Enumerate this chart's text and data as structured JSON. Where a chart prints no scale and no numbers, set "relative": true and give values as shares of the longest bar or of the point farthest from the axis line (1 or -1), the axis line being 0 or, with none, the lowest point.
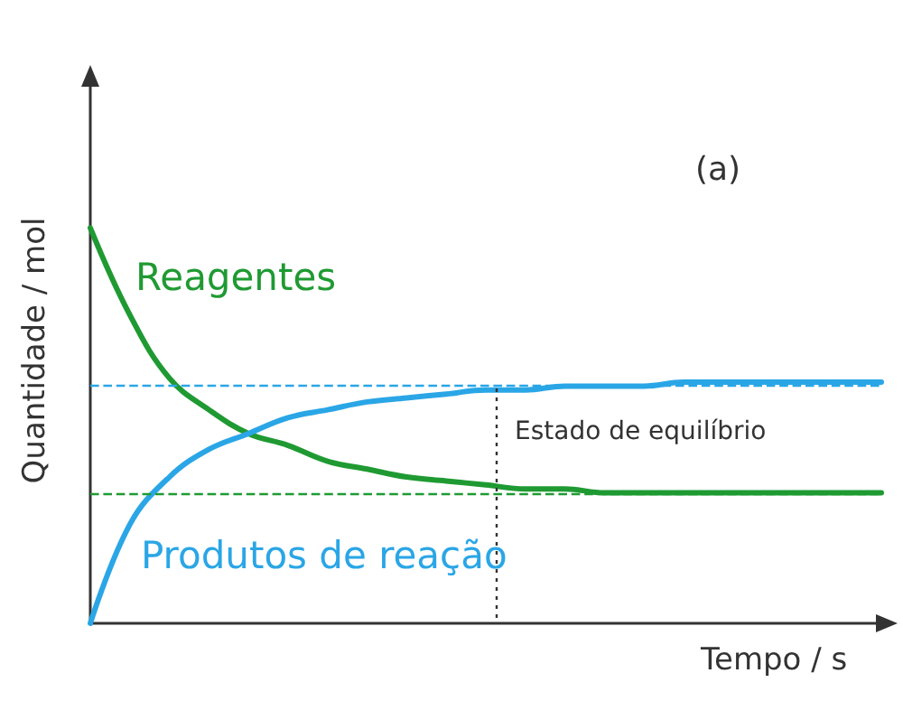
{
  "chart_data": {
    "type": "line",
    "relative": true,
    "xlabel": "Tempo / s",
    "ylabel": "Quantidade / mol",
    "annotations": [
      "(a)",
      "Estado de equilíbrio"
    ],
    "categories": [
      null,
      null,
      null,
      null,
      null,
      null,
      null,
      null,
      null,
      null,
      null,
      null,
      null,
      null,
      null,
      null,
      null,
      null,
      null,
      null,
      null
    ],
    "series": [
      {
        "name": "Reagentes",
        "color": "#1f9a32",
        "values": [
          1,
          0.78,
          0.62,
          0.54,
          0.48,
          0.45,
          0.41,
          0.39,
          0.37,
          0.36,
          0.35,
          0.34,
          0.34,
          0.33,
          0.33,
          0.33,
          0.33,
          0.33,
          0.33,
          0.33,
          0.33
        ]
      },
      {
        "name": "Produtos de reação",
        "color": "#2aa6e6",
        "values": [
          0,
          0.25,
          0.37,
          0.44,
          0.48,
          0.52,
          0.54,
          0.56,
          0.57,
          0.58,
          0.59,
          0.59,
          0.6,
          0.6,
          0.6,
          0.61,
          0.61,
          0.61,
          0.61,
          0.61,
          0.61
        ]
      }
    ],
    "ref_lines": [
      {
        "axis": "y",
        "value": 0.6,
        "color": "#2aa6e6",
        "line_style": "dashed"
      },
      {
        "axis": "y",
        "value": 0.33,
        "color": "#1f9a32",
        "line_style": "dashed"
      }
    ],
    "grid": false,
    "legend": false,
    "marker": "none",
    "line_style": "solid"
  }
}
